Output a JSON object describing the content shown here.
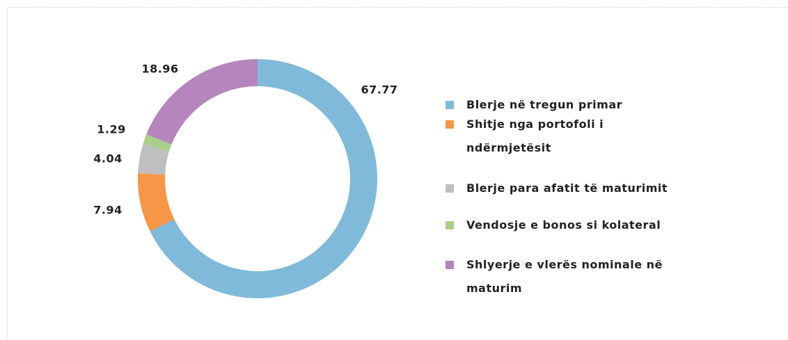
{
  "chart_data": {
    "type": "donut",
    "categories": [
      "Blerje në tregun primar",
      "Shitje nga portofoli i ndërmjetësit",
      "Blerje para afatit të maturimit",
      "Vendosje e bonos si kolateral",
      "Shlyerje e vlerës nominale në maturim"
    ],
    "values": [
      67.77,
      7.94,
      4.04,
      1.29,
      18.96
    ],
    "colors": [
      "#80badb",
      "#f79646",
      "#bfbfbf",
      "#aacf8b",
      "#b685bd"
    ],
    "legend": "right"
  }
}
